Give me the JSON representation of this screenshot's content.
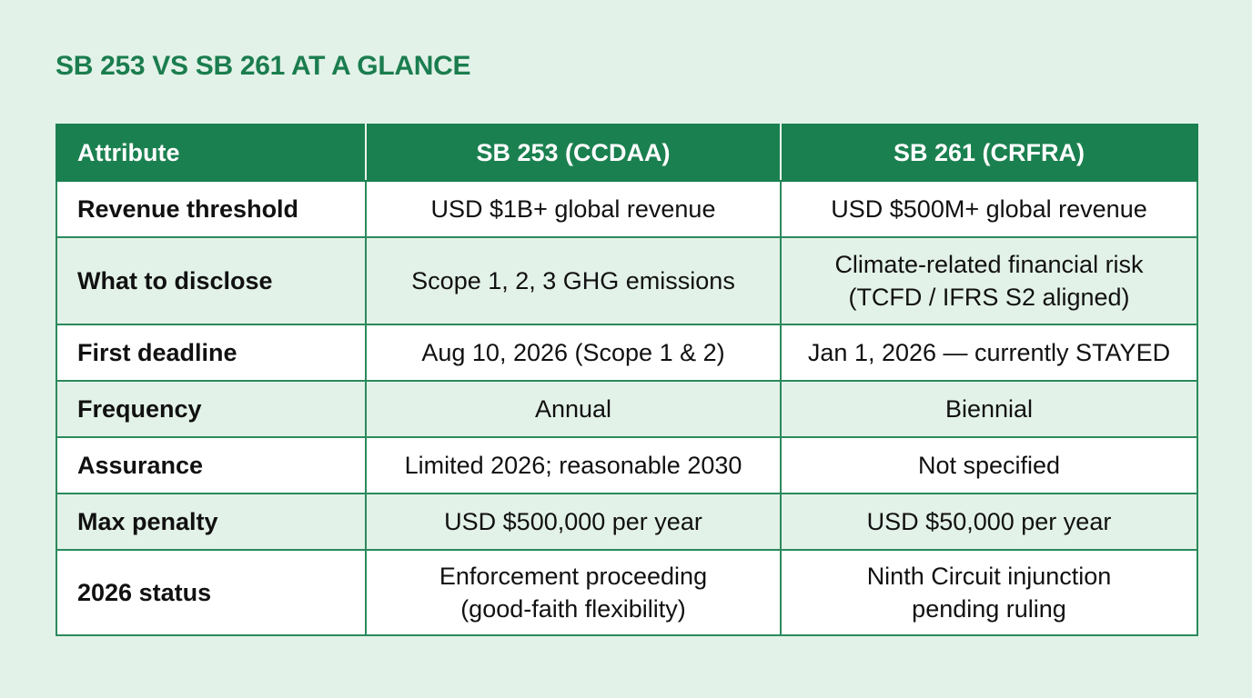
{
  "title": "SB 253 VS SB 261 AT A GLANCE",
  "colors": {
    "accent": "#1b8050",
    "title": "#1b7d4f",
    "background": "#e3f2e8",
    "row_alt": "#e3f2e8",
    "row": "#ffffff",
    "border": "#2b8a5c"
  },
  "table": {
    "headers": [
      "Attribute",
      "SB 253 (CCDAA)",
      "SB 261 (CRFRA)"
    ],
    "rows": [
      {
        "attribute": "Revenue threshold",
        "sb253": "USD $1B+ global revenue",
        "sb261": "USD $500M+ global revenue"
      },
      {
        "attribute": "What to disclose",
        "sb253": "Scope 1, 2, 3 GHG emissions",
        "sb261_line1": "Climate-related financial risk",
        "sb261_line2": "(TCFD / IFRS S2 aligned)"
      },
      {
        "attribute": "First deadline",
        "sb253": "Aug 10, 2026 (Scope 1 & 2)",
        "sb261": "Jan 1, 2026 — currently STAYED"
      },
      {
        "attribute": "Frequency",
        "sb253": "Annual",
        "sb261": "Biennial"
      },
      {
        "attribute": "Assurance",
        "sb253": "Limited 2026; reasonable 2030",
        "sb261": "Not specified"
      },
      {
        "attribute": "Max penalty",
        "sb253": "USD $500,000 per year",
        "sb261": "USD $50,000 per year"
      },
      {
        "attribute": "2026 status",
        "sb253_line1": "Enforcement proceeding",
        "sb253_line2": "(good-faith flexibility)",
        "sb261_line1": "Ninth Circuit injunction",
        "sb261_line2": "pending ruling"
      }
    ]
  }
}
